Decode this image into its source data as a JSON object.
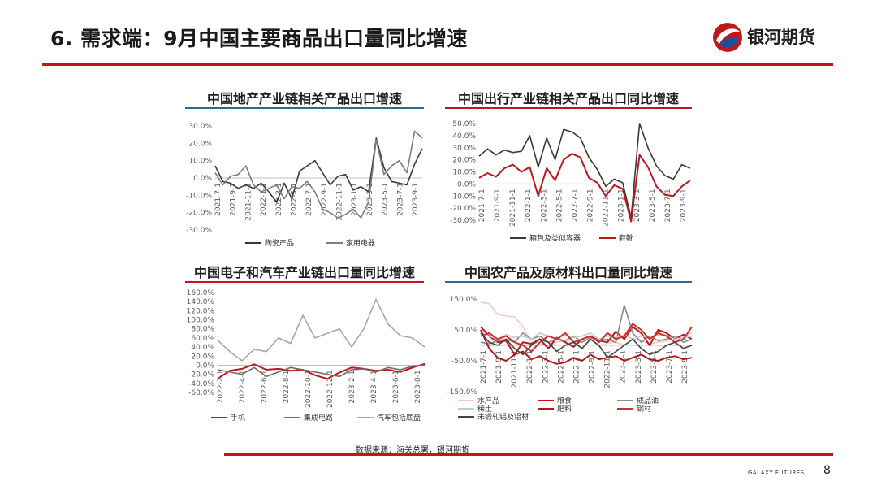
{
  "header": {
    "title": "6. 需求端：9月中国主要商品出口量同比增速",
    "logo_text": "银河期货",
    "brand_colors": {
      "red": "#c0171c",
      "blue": "#1f4e9e"
    }
  },
  "source_note": "数据来源：海关总署，银河期货",
  "footer": {
    "brand": "GALAXY FUTURES",
    "page": "8"
  },
  "chart_data": [
    {
      "id": "realestate",
      "type": "line",
      "title": "中国地产产业链相关产品出口增速",
      "title_underline": "#2f6b8e",
      "y_ticks": [
        "30.0%",
        "20.0%",
        "10.0%",
        "0.0%",
        "-10.0%",
        "-20.0%",
        "-30.0%"
      ],
      "ylim": [
        -30,
        30
      ],
      "x_ticks": [
        "2021-7-1",
        "2021-9-1",
        "2021-11-1",
        "2022-1-1",
        "2022-3-1",
        "2022-5-1",
        "2022-7-1",
        "2022-9-1",
        "2022-11-1",
        "2023-1-1",
        "2023-3-1",
        "2023-5-1",
        "2023-7-1",
        "2023-9-1"
      ],
      "series": [
        {
          "name": "陶瓷产品",
          "color": "#3a3a3a",
          "values": [
            7,
            -2,
            -3,
            -6,
            -4,
            -6,
            -3,
            -8,
            -14,
            -3,
            -12,
            4,
            7,
            10,
            3,
            -4,
            1,
            2,
            -7,
            -5,
            -8,
            23,
            6,
            -2,
            -3,
            -4,
            8,
            17
          ]
        },
        {
          "name": "家用电器",
          "color": "#7d7d7d",
          "values": [
            3,
            -4,
            1,
            2,
            7,
            -4,
            -8,
            -6,
            -4,
            -12,
            -5,
            -6,
            -2,
            -8,
            -18,
            -20,
            -23,
            -21,
            -18,
            -23,
            -14,
            22,
            2,
            7,
            10,
            3,
            27,
            23
          ]
        }
      ]
    },
    {
      "id": "travel",
      "type": "line",
      "title": "中国出行产业链相关产品出口同比增速",
      "title_underline": "#c0171c",
      "y_ticks": [
        "50.0%",
        "40.0%",
        "30.0%",
        "20.0%",
        "10.0%",
        "0.0%",
        "-10.0%",
        "-20.0%",
        "-30.0%"
      ],
      "ylim": [
        -30,
        50
      ],
      "x_ticks": [
        "2021-7-1",
        "2021-9-1",
        "2021-11-1",
        "2022-1-1",
        "2022-3-1",
        "2022-5-1",
        "2022-7-1",
        "2022-9-1",
        "2022-11-1",
        "2023-1-1",
        "2023-3-1",
        "2023-5-1",
        "2023-7-1",
        "2023-9-1"
      ],
      "series": [
        {
          "name": "箱包及类似容器",
          "color": "#3a3a3a",
          "values": [
            23,
            29,
            24,
            28,
            26,
            27,
            40,
            14,
            38,
            20,
            45,
            43,
            38,
            22,
            12,
            -2,
            4,
            1,
            -28,
            50,
            30,
            15,
            7,
            4,
            16,
            13
          ]
        },
        {
          "name": "鞋靴",
          "color": "#c0171c",
          "values": [
            5,
            9,
            6,
            13,
            16,
            10,
            14,
            -10,
            13,
            3,
            20,
            25,
            22,
            5,
            1,
            -10,
            -1,
            -4,
            -31,
            24,
            14,
            -2,
            -9,
            -10,
            -2,
            3
          ]
        }
      ]
    },
    {
      "id": "electronics",
      "type": "line",
      "title": "中国电子和汽车产业链出口量同比增速",
      "title_underline": "#c0171c",
      "y_ticks": [
        "160.0%",
        "140.0%",
        "120.0%",
        "100.0%",
        "80.0%",
        "60.0%",
        "40.0%",
        "20.0%",
        "0.0%",
        "-20.0%",
        "-40.0%",
        "-60.0%"
      ],
      "ylim": [
        -60,
        160
      ],
      "x_ticks": [
        "2022-2-1",
        "2022-4-1",
        "2022-6-1",
        "2022-8-1",
        "2022-10-1",
        "2022-12-1",
        "2023-2-1",
        "2023-4-1",
        "2023-6-1",
        "2023-8-1"
      ],
      "series": [
        {
          "name": "手机",
          "color": "#c0171c",
          "values": [
            -30,
            -12,
            -8,
            2,
            -10,
            -8,
            -12,
            -10,
            -22,
            -30,
            -16,
            -5,
            -8,
            -12,
            -10,
            -15,
            -5,
            3
          ]
        },
        {
          "name": "集成电路",
          "color": "#6d6d6d",
          "values": [
            -10,
            -15,
            -20,
            -5,
            -25,
            -15,
            -5,
            -10,
            -15,
            -20,
            -25,
            -10,
            -8,
            -15,
            -5,
            -10,
            -2,
            0
          ]
        },
        {
          "name": "汽车包括底盘",
          "color": "#a6a6a6",
          "values": [
            55,
            30,
            10,
            35,
            30,
            60,
            48,
            110,
            60,
            70,
            80,
            40,
            80,
            145,
            90,
            65,
            60,
            40
          ]
        }
      ]
    },
    {
      "id": "agri",
      "type": "line",
      "title": "中国农产品及原材料出口量同比增速",
      "title_underline": "#2f6b8e",
      "y_ticks": [
        "150.0%",
        "50.0%",
        "-50.0%",
        "-150.0%"
      ],
      "ylim": [
        -150,
        150
      ],
      "x_ticks": [
        "2021-7-1",
        "2021-9-1",
        "2021-11-1",
        "2022-1-1",
        "2022-3-1",
        "2022-5-1",
        "2022-7-1",
        "2022-9-1",
        "2022-11-1",
        "2023-1-1",
        "2023-3-1",
        "2023-5-1",
        "2023-7-1",
        "2023-9-1"
      ],
      "series": [
        {
          "name": "水产品",
          "color": "#f2c9c9",
          "values": [
            140,
            135,
            100,
            95,
            92,
            60,
            10,
            5,
            0,
            10,
            15,
            5,
            12,
            20,
            -5,
            8,
            10,
            0,
            20,
            15,
            5,
            10,
            15,
            25,
            30,
            40
          ]
        },
        {
          "name": "粮食",
          "color": "#c0171c",
          "values": [
            60,
            30,
            10,
            15,
            -30,
            10,
            5,
            20,
            -10,
            25,
            10,
            -5,
            20,
            30,
            15,
            10,
            45,
            20,
            60,
            40,
            0,
            50,
            40,
            20,
            35,
            20
          ]
        },
        {
          "name": "成品油",
          "color": "#8a8a8a",
          "values": [
            10,
            5,
            15,
            20,
            10,
            40,
            20,
            30,
            10,
            20,
            15,
            30,
            10,
            25,
            15,
            20,
            10,
            130,
            40,
            10,
            30,
            15,
            20,
            30,
            10,
            20
          ]
        },
        {
          "name": "稀土",
          "color": "#c9c9c9",
          "values": [
            40,
            30,
            20,
            35,
            25,
            30,
            20,
            40,
            30,
            20,
            35,
            25,
            30,
            40,
            20,
            30,
            25,
            35,
            20,
            30,
            25,
            35,
            30,
            20,
            25,
            30
          ]
        },
        {
          "name": "肥料",
          "color": "#b01a1f",
          "values": [
            50,
            -10,
            -40,
            -50,
            -30,
            -20,
            -45,
            -35,
            -50,
            -60,
            -55,
            -40,
            -50,
            -30,
            -45,
            -40,
            -35,
            -50,
            -40,
            -30,
            -45,
            -50,
            -40,
            -35,
            -45,
            -40
          ]
        },
        {
          "name": "钢材",
          "color": "#d32f2f",
          "values": [
            30,
            40,
            20,
            30,
            10,
            0,
            -20,
            10,
            30,
            20,
            40,
            10,
            20,
            30,
            10,
            40,
            20,
            30,
            70,
            50,
            20,
            40,
            30,
            10,
            20,
            60
          ]
        },
        {
          "name": "未锻轧铝及铝材",
          "color": "#444444",
          "values": [
            40,
            10,
            0,
            20,
            -10,
            -30,
            0,
            20,
            10,
            -20,
            0,
            10,
            -10,
            20,
            0,
            -40,
            -20,
            0,
            20,
            -10,
            -30,
            -20,
            0,
            10,
            -10,
            0
          ]
        }
      ]
    }
  ]
}
